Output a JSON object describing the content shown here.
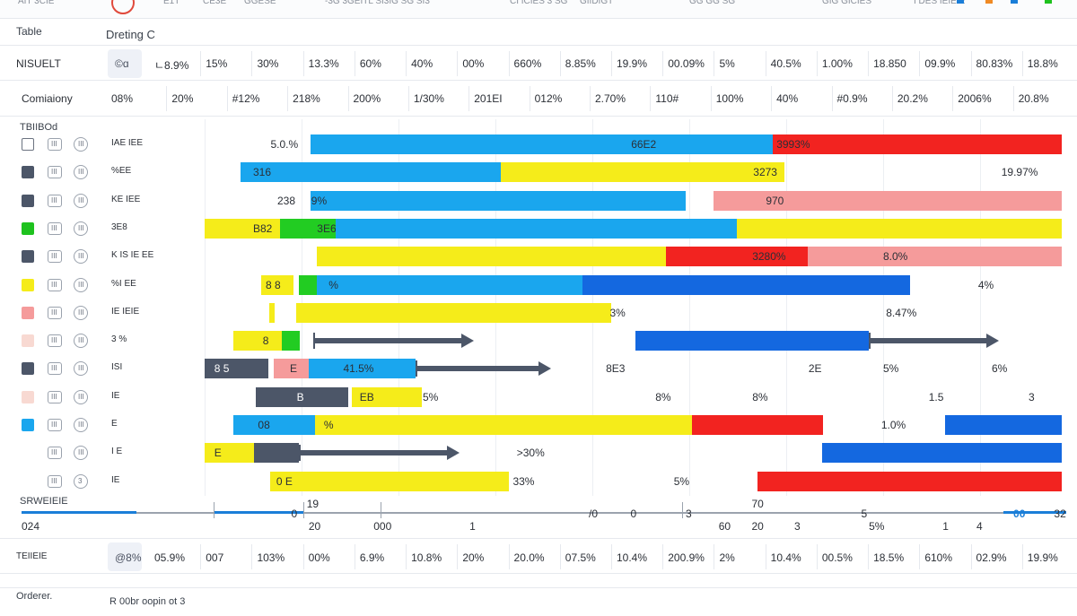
{
  "top_bar": {
    "items": [
      "AIT 3CIE",
      "E1T",
      "CE3E",
      "GGESE",
      "-3G 3GEITL SI3IG SG SI3",
      "CI ICIES 3 SG",
      "GIIDIGT",
      "GG GG SG",
      "GIG GICIES",
      "I DES IEIEIE"
    ],
    "colors": [
      "#1a7ed8",
      "#f08a24",
      "#1a7ed8",
      "#1ec21e"
    ]
  },
  "header": {
    "title": "Table",
    "subtitle": "Dreting C"
  },
  "summary_rows": [
    {
      "label": "NISUELT",
      "badge": "©ɑ",
      "values": [
        "ㄴ8.9%",
        "15%",
        "30%",
        "13.3%",
        "60%",
        "40%",
        "00%",
        "660%",
        "8.85%",
        "19.9%",
        "00.09%",
        "5%",
        "40.5%",
        "1.00%",
        "18.850",
        "09.9%",
        "80.83%",
        "18.8%"
      ]
    },
    {
      "label": "Comiaiony",
      "values": [
        "08%",
        "20%",
        "#12%",
        "218%",
        "200%",
        "1/30%",
        "201EI",
        "012%",
        "2.70%",
        "110#",
        "100%",
        "40%",
        "#0.9%",
        "20.2%",
        "2006%",
        "20.8%"
      ]
    }
  ],
  "chart_data": {
    "type": "bar",
    "section_title": "TBIIBOd",
    "xlim": [
      0,
      100
    ],
    "rows": [
      {
        "label": "IAE IEE",
        "check": "none",
        "square": "III",
        "circle": "III",
        "segments": [
          {
            "start": 20.9,
            "end": 68.6,
            "color": "#1aa6ee",
            "text": "66E2",
            "text_at": 54.0
          },
          {
            "start": 68.6,
            "end": 98.4,
            "color": "#f22320",
            "text": "3993%",
            "text_at": 69.0
          }
        ],
        "outside": [
          {
            "text": "5.0.%",
            "at": 16.8
          }
        ]
      },
      {
        "label": "%EE",
        "check": "#4c5668",
        "square": "III",
        "circle": "III",
        "segments": [
          {
            "start": 13.7,
            "end": 40.6,
            "color": "#1aa6ee",
            "text": "316",
            "text_at": 15.0
          },
          {
            "start": 40.6,
            "end": 69.8,
            "color": "#f5ec1a",
            "text": "3273",
            "text_at": 66.6
          }
        ],
        "outside": [
          {
            "text": "19.97%",
            "at": 92.2
          }
        ]
      },
      {
        "label": "KE IEE",
        "check": "#4c5668",
        "square": "III",
        "circle": "III",
        "segments": [
          {
            "start": 20.9,
            "end": 59.6,
            "color": "#1aa6ee",
            "text": "9%",
            "text_at": 21.0
          },
          {
            "start": 62.5,
            "end": 98.4,
            "color": "#f59b9b",
            "text": "970",
            "text_at": 67.9
          }
        ],
        "outside": [
          {
            "text": "238",
            "at": 17.5
          }
        ]
      },
      {
        "label": "3E8",
        "check": "#1ec21e",
        "square": "III",
        "circle": "III",
        "segments": [
          {
            "start": 10.0,
            "end": 17.8,
            "color": "#f5ec1a",
            "text": "B82",
            "text_at": 15.0
          },
          {
            "start": 17.8,
            "end": 23.5,
            "color": "#22cc22",
            "text": "3E6",
            "text_at": 21.6
          },
          {
            "start": 23.5,
            "end": 64.9,
            "color": "#1aa6ee",
            "text": "",
            "text_at": 0
          },
          {
            "start": 64.9,
            "end": 98.4,
            "color": "#f5ec1a",
            "text": "",
            "text_at": 0
          }
        ],
        "outside": []
      },
      {
        "label": "K IS IE EE",
        "check": "#4c5668",
        "square": "III",
        "circle": "III",
        "segments": [
          {
            "start": 21.6,
            "end": 57.6,
            "color": "#f5ec1a",
            "text": "",
            "text_at": 0
          },
          {
            "start": 57.6,
            "end": 72.2,
            "color": "#f22320",
            "text": "3280%",
            "text_at": 66.5
          },
          {
            "start": 72.2,
            "end": 98.4,
            "color": "#f59b9b",
            "text": "",
            "text_at": 0
          }
        ],
        "outside": [
          {
            "text": "8.0%",
            "at": 80.0
          }
        ]
      },
      {
        "label": "%I EE",
        "check": "#f5ec1a",
        "square": "III",
        "circle": "III",
        "segments": [
          {
            "start": 15.8,
            "end": 19.2,
            "color": "#f5ec1a",
            "text": "8 8",
            "text_at": 16.3
          },
          {
            "start": 19.7,
            "end": 21.6,
            "color": "#22cc22",
            "text": "",
            "text_at": 0
          },
          {
            "start": 21.6,
            "end": 49.0,
            "color": "#1aa6ee",
            "text": "%",
            "text_at": 22.8
          },
          {
            "start": 49.0,
            "end": 82.8,
            "color": "#1468e0",
            "text": "",
            "text_at": 0
          }
        ],
        "outside": [
          {
            "text": "4%",
            "at": 89.8
          }
        ]
      },
      {
        "label": "IE IEIE",
        "check": "#f59b9b",
        "square": "III",
        "circle": "III",
        "segments": [
          {
            "start": 16.7,
            "end": 17.2,
            "color": "#f5ec1a",
            "text": "",
            "text_at": 0
          },
          {
            "start": 17.2,
            "end": 19.4,
            "color": "#ffffff",
            "text": "",
            "text_at": 0
          },
          {
            "start": 19.4,
            "end": 51.9,
            "color": "#f5ec1a",
            "text": "3%",
            "text_at": 51.8
          }
        ],
        "outside": [
          {
            "text": "8.47%",
            "at": 80.3
          }
        ]
      },
      {
        "label": "3 %",
        "check": "#f8d9d2",
        "square": "III",
        "circle": "III",
        "segments": [
          {
            "start": 13.0,
            "end": 18.0,
            "color": "#f5ec1a",
            "text": "8",
            "text_at": 16.0
          },
          {
            "start": 18.0,
            "end": 19.8,
            "color": "#22cc22",
            "text": "",
            "text_at": 0
          },
          {
            "start": 54.4,
            "end": 78.5,
            "color": "#1468e0",
            "text": "",
            "text_at": 0
          }
        ],
        "arrows": [
          {
            "start": 21.2,
            "end": 36.7
          },
          {
            "start": 78.5,
            "end": 90.8
          }
        ],
        "outside": []
      },
      {
        "label": "ISI",
        "check": "#4c5668",
        "square": "III",
        "circle": "III",
        "segments": [
          {
            "start": 10.0,
            "end": 16.6,
            "color": "#4c5668",
            "text": "8 5",
            "text_at": 11.0
          },
          {
            "start": 17.1,
            "end": 20.7,
            "color": "#f59b9b",
            "text": "E",
            "text_at": 18.8
          },
          {
            "start": 20.7,
            "end": 31.8,
            "color": "#1aa6ee",
            "text": "41.5%",
            "text_at": 24.3
          }
        ],
        "arrows": [
          {
            "start": 31.8,
            "end": 44.6
          }
        ],
        "outside": [
          {
            "text": "8E3",
            "at": 51.4
          },
          {
            "text": "2E",
            "at": 72.3
          },
          {
            "text": "5%",
            "at": 80.0
          },
          {
            "text": "6%",
            "at": 91.2
          }
        ]
      },
      {
        "label": "IE",
        "check": "#f8d9d2",
        "square": "III",
        "circle": "III",
        "segments": [
          {
            "start": 15.3,
            "end": 24.8,
            "color": "#4c5668",
            "text": "B",
            "text_at": 19.5
          },
          {
            "start": 25.2,
            "end": 32.4,
            "color": "#f5ec1a",
            "text": "EB",
            "text_at": 26.0
          },
          {
            "start": 32.4,
            "end": 32.5,
            "color": "#ffffff",
            "text": "5%",
            "text_at": 32.5
          }
        ],
        "outside": [
          {
            "text": "8%",
            "at": 56.5
          },
          {
            "text": "8%",
            "at": 66.5
          },
          {
            "text": "1.5",
            "at": 84.7
          },
          {
            "text": "3",
            "at": 95.0
          }
        ]
      },
      {
        "label": "E",
        "check": "#1aa6ee",
        "square": "III",
        "circle": "III",
        "segments": [
          {
            "start": 13.0,
            "end": 21.4,
            "color": "#1aa6ee",
            "text": "08",
            "text_at": 15.5
          },
          {
            "start": 21.4,
            "end": 60.3,
            "color": "#f5ec1a",
            "text": "%",
            "text_at": 22.3
          },
          {
            "start": 60.3,
            "end": 73.8,
            "color": "#f22320",
            "text": "",
            "text_at": 0
          },
          {
            "start": 86.4,
            "end": 98.4,
            "color": "#1468e0",
            "text": "",
            "text_at": 0
          }
        ],
        "outside": [
          {
            "text": "1.0%",
            "at": 79.8
          }
        ]
      },
      {
        "label": "I E",
        "check": "none",
        "square": "III",
        "circle": "III",
        "segments": [
          {
            "start": 10.0,
            "end": 15.1,
            "color": "#f5ec1a",
            "text": "E",
            "text_at": 11.0
          },
          {
            "start": 15.1,
            "end": 19.7,
            "color": "#4c5668",
            "text": "",
            "text_at": 0
          },
          {
            "start": 73.7,
            "end": 98.4,
            "color": "#1468e0",
            "text": "",
            "text_at": 0
          }
        ],
        "arrows": [
          {
            "start": 19.7,
            "end": 35.2
          }
        ],
        "outside": [
          {
            "text": ">30%",
            "at": 42.2
          }
        ]
      },
      {
        "label": "IE",
        "check": "none",
        "square": "III",
        "circle": "3",
        "circle_text": "3",
        "segments": [
          {
            "start": 16.8,
            "end": 41.4,
            "color": "#f5ec1a",
            "text": "0 E",
            "text_at": 17.4
          },
          {
            "start": 67.0,
            "end": 98.4,
            "color": "#f22320",
            "text": "",
            "text_at": 0
          }
        ],
        "outside": [
          {
            "text": "33%",
            "at": 41.8
          },
          {
            "text": "5%",
            "at": 58.4
          }
        ]
      }
    ]
  },
  "axis": {
    "caption": "SRWEIEIE",
    "start_label": "024",
    "labels": [
      {
        "text": "19",
        "at": 20.9,
        "row": "top"
      },
      {
        "text": "0",
        "at": 19.3,
        "row": "mid"
      },
      {
        "text": "20",
        "at": 21.1,
        "row": "bottom"
      },
      {
        "text": "000",
        "at": 27.8,
        "row": "bottom"
      },
      {
        "text": "1",
        "at": 37.7,
        "row": "bottom"
      },
      {
        "text": "/0",
        "at": 50.0,
        "row": "mid"
      },
      {
        "text": "0",
        "at": 54.3,
        "row": "mid"
      },
      {
        "text": "3",
        "at": 60.0,
        "row": "mid"
      },
      {
        "text": "60",
        "at": 63.4,
        "row": "bottom"
      },
      {
        "text": "70",
        "at": 66.8,
        "row": "top"
      },
      {
        "text": "20",
        "at": 66.8,
        "row": "bottom"
      },
      {
        "text": "3",
        "at": 71.2,
        "row": "bottom"
      },
      {
        "text": "5",
        "at": 78.1,
        "row": "mid"
      },
      {
        "text": "5%",
        "at": 78.9,
        "row": "bottom"
      },
      {
        "text": "1",
        "at": 86.5,
        "row": "bottom"
      },
      {
        "text": "4",
        "at": 90.0,
        "row": "bottom"
      },
      {
        "text": "00",
        "at": 93.8,
        "row": "mid",
        "blue": true
      },
      {
        "text": "32",
        "at": 98.0,
        "row": "mid"
      }
    ]
  },
  "bottom_summary": {
    "label": "TEIIEIE",
    "badge": "@8%",
    "values": [
      "05.9%",
      "007",
      "103%",
      "00%",
      "6.9%",
      "10.8%",
      "20%",
      "20.0%",
      "07.5%",
      "10.4%",
      "200.9%",
      "2%",
      "10.4%",
      "00.5%",
      "18.5%",
      "610%",
      "02.9%",
      "19.9%"
    ]
  },
  "footer": {
    "label": "Orderer.",
    "note": "R 00br oopin ot 3"
  }
}
